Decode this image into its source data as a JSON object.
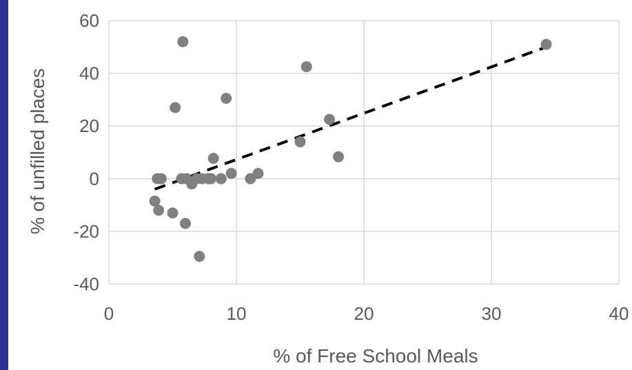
{
  "colors": {
    "border": "#2E3192",
    "background": "#ffffff",
    "grid": "#D9D9D9",
    "marker": "#808080",
    "trendline": "#000000",
    "text": "#595959"
  },
  "chart_data": {
    "type": "scatter",
    "title": "",
    "xlabel": "% of Free School Meals",
    "ylabel": "% of unfilled places",
    "xlim": [
      0,
      40
    ],
    "ylim": [
      -40,
      60
    ],
    "x_ticks": [
      "0",
      "10",
      "20",
      "30",
      "40"
    ],
    "y_ticks": [
      "-40",
      "-20",
      "0",
      "20",
      "40",
      "60"
    ],
    "grid": true,
    "legend": "none",
    "marker_color": "#808080",
    "points": [
      {
        "x": 5.8,
        "y": 52
      },
      {
        "x": 15.5,
        "y": 42.5
      },
      {
        "x": 34.3,
        "y": 51
      },
      {
        "x": 5.2,
        "y": 27
      },
      {
        "x": 9.2,
        "y": 30.5
      },
      {
        "x": 17.3,
        "y": 22.5
      },
      {
        "x": 15.0,
        "y": 14
      },
      {
        "x": 18.0,
        "y": 8.3
      },
      {
        "x": 8.2,
        "y": 7.7
      },
      {
        "x": 3.8,
        "y": 0
      },
      {
        "x": 4.1,
        "y": 0
      },
      {
        "x": 5.7,
        "y": 0
      },
      {
        "x": 6.1,
        "y": 0
      },
      {
        "x": 6.9,
        "y": 0
      },
      {
        "x": 7.3,
        "y": 0
      },
      {
        "x": 7.8,
        "y": 0
      },
      {
        "x": 8.0,
        "y": 0
      },
      {
        "x": 8.8,
        "y": 0
      },
      {
        "x": 9.6,
        "y": 2
      },
      {
        "x": 11.1,
        "y": 0
      },
      {
        "x": 11.7,
        "y": 2
      },
      {
        "x": 6.5,
        "y": -2
      },
      {
        "x": 3.6,
        "y": -8.5
      },
      {
        "x": 3.9,
        "y": -12
      },
      {
        "x": 5.0,
        "y": -13
      },
      {
        "x": 6.0,
        "y": -17
      },
      {
        "x": 7.1,
        "y": -29.5
      }
    ],
    "trendline": {
      "style": "dashed",
      "color": "#000000",
      "x": [
        3.6,
        34.3
      ],
      "y": [
        -4,
        50
      ]
    }
  }
}
